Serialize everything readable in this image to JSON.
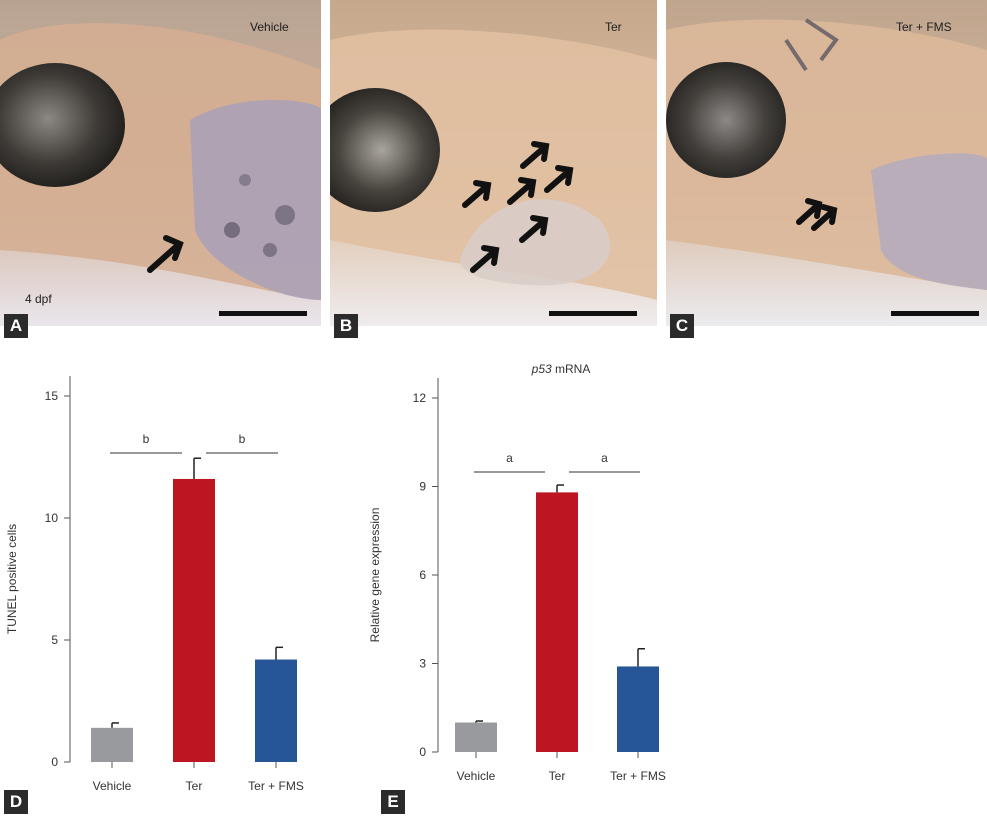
{
  "photos": [
    {
      "letter": "A",
      "label": "Vehicle",
      "age": "4 dpf"
    },
    {
      "letter": "B",
      "label": "Ter"
    },
    {
      "letter": "C",
      "label": "Ter + FMS"
    }
  ],
  "colors": {
    "vehicle": "#999a9e",
    "ter": "#be1522",
    "ter_fms": "#265696",
    "panel_letter_bg": "#2b2b2b"
  },
  "chart_data": [
    {
      "panel": "D",
      "type": "bar",
      "title": "",
      "categories": [
        "Vehicle",
        "Ter",
        "Ter + FMS"
      ],
      "values": [
        1.4,
        11.6,
        4.2
      ],
      "errors": [
        0.2,
        0.85,
        0.5
      ],
      "ylabel": "TUNEL positive cells",
      "xlabel": "",
      "ylim": [
        0,
        15
      ],
      "yticks": [
        "0",
        "5",
        "10",
        "15"
      ],
      "significance": [
        {
          "from": "Vehicle",
          "to": "Ter",
          "label": "b"
        },
        {
          "from": "Ter",
          "to": "Ter + FMS",
          "label": "b"
        }
      ]
    },
    {
      "panel": "E",
      "type": "bar",
      "title_italic": "p53",
      "title_rest": " mRNA",
      "categories": [
        "Vehicle",
        "Ter",
        "Ter + FMS"
      ],
      "values": [
        1.0,
        8.8,
        2.9
      ],
      "errors": [
        0.05,
        0.25,
        0.6
      ],
      "ylabel": "Relative gene expression",
      "xlabel": "",
      "ylim": [
        0,
        12
      ],
      "yticks": [
        "0",
        "3",
        "6",
        "9",
        "12"
      ],
      "significance": [
        {
          "from": "Vehicle",
          "to": "Ter",
          "label": "a"
        },
        {
          "from": "Ter",
          "to": "Ter + FMS",
          "label": "a"
        }
      ]
    }
  ]
}
